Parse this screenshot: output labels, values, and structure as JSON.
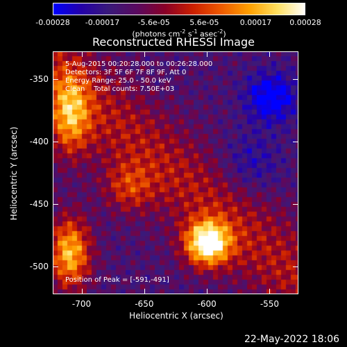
{
  "colorbar": {
    "colors": [
      "#0000ff",
      "#2400aa",
      "#3a1a7a",
      "#5a0a60",
      "#8a0028",
      "#cc2000",
      "#ee5a00",
      "#ffa000",
      "#ffe060",
      "#ffffff"
    ],
    "ticks": [
      {
        "label": "-0.00028",
        "value": -0.00028
      },
      {
        "label": "-0.00017",
        "value": -0.00017
      },
      {
        "label": "-5.6e-05",
        "value": -5.6e-05
      },
      {
        "label": "5.6e-05",
        "value": 5.6e-05
      },
      {
        "label": "0.00017",
        "value": 0.00017
      },
      {
        "label": "0.00028",
        "value": 0.00028
      }
    ],
    "units_parts": [
      "(photons cm",
      "-2",
      " s",
      "-1",
      " asec",
      "-2",
      ")"
    ]
  },
  "title": "Reconstructed RHESSI Image",
  "annotations": {
    "line1": "5-Aug-2015 00:20:28.000 to 00:26:28.000",
    "line2": "Detectors: 3F 5F 6F 7F 8F 9F, Att 0",
    "line3": "Energy Range: 25.0 - 50.0 keV",
    "line4": "Clean    Total counts: 7.50E+03",
    "peak": "Position of Peak = [-591,-491]"
  },
  "axes": {
    "xlabel": "Heliocentric X (arcsec)",
    "ylabel": "Heliocentric Y (arcsec)",
    "xlim": [
      -723,
      -527
    ],
    "ylim": [
      -522,
      -328
    ],
    "xticks": [
      {
        "label": "-700",
        "value": -700
      },
      {
        "label": "-650",
        "value": -650
      },
      {
        "label": "-600",
        "value": -600
      },
      {
        "label": "-550",
        "value": -550
      }
    ],
    "yticks": [
      {
        "label": "-350",
        "value": -350
      },
      {
        "label": "-400",
        "value": -400
      },
      {
        "label": "-450",
        "value": -450
      },
      {
        "label": "-500",
        "value": -500
      }
    ]
  },
  "footer": {
    "timestamp": "22-May-2022 18:06"
  }
}
